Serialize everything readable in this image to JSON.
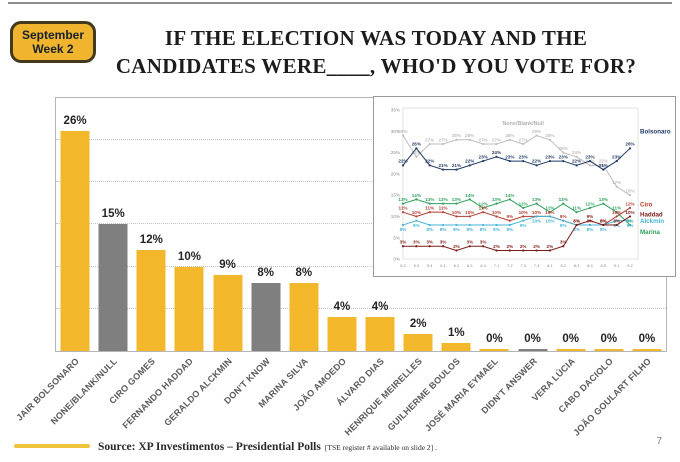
{
  "badge": {
    "line1": "September",
    "line2": "Week 2"
  },
  "title": {
    "line1": "IF THE ELECTION WAS TODAY AND THE",
    "line2": "CANDIDATES WERE____, WHO'D YOU VOTE FOR?"
  },
  "footer": {
    "source_main": "Source: XP Investimentos – Presidential  Polls",
    "source_note": "[TSE register # available on slide 2] .",
    "page_number": "7"
  },
  "colors": {
    "bar_yellow": "#f3b72b",
    "bar_gray": "#7f7f7f",
    "badge_yellow": "#f0b42f",
    "navy": "#1f3864",
    "gray_line": "#bdbdbd",
    "green": "#2fa05c",
    "ciro_red": "#b33a2c",
    "haddad_red": "#7e1a16",
    "alckmin_blue": "#45b5d8"
  },
  "chart_data": [
    {
      "type": "bar",
      "title": "",
      "xlabel": "",
      "ylabel": "",
      "ylim": [
        0,
        30
      ],
      "gridlines": [
        5,
        10,
        15,
        20,
        25
      ],
      "grid": true,
      "categories": [
        "JAIR BOLSONARO",
        "NONE/BLANK/NULL",
        "CIRO GOMES",
        "FERNANDO HADDAD",
        "GERALDO ALCKMIN",
        "DON'T KNOW",
        "MARINA SILVA",
        "JOÃO AMOEDO",
        "ÁLVARO DIAS",
        "HENRIQUE MEIRELLES",
        "GUILHERME BOULOS",
        "JOSÉ MARIA EYMAEL",
        "DIDN'T ANSWER",
        "VERA LÚCIA",
        "CABO DACIOLO",
        "JOÃO GOULART FILHO"
      ],
      "values": [
        26,
        15,
        12,
        10,
        9,
        8,
        8,
        4,
        4,
        2,
        1,
        0,
        0,
        0,
        0,
        0
      ],
      "data_labels": [
        "26%",
        "15%",
        "12%",
        "10%",
        "9%",
        "8%",
        "8%",
        "4%",
        "4%",
        "2%",
        "1%",
        "0%",
        "0%",
        "0%",
        "0%",
        "0%"
      ],
      "bar_color_keys": [
        "bar_yellow",
        "bar_gray",
        "bar_yellow",
        "bar_yellow",
        "bar_yellow",
        "bar_gray",
        "bar_yellow",
        "bar_yellow",
        "bar_yellow",
        "bar_yellow",
        "bar_yellow",
        "bar_yellow",
        "bar_gray",
        "bar_yellow",
        "bar_yellow",
        "bar_yellow"
      ]
    },
    {
      "type": "line",
      "title": "",
      "xlabel": "",
      "ylabel": "",
      "ylim": [
        0,
        35
      ],
      "y_ticks": [
        "0%",
        "5%",
        "10%",
        "15%",
        "20%",
        "25%",
        "30%",
        "35%"
      ],
      "grid": false,
      "legend_position": "right-edge",
      "x": [
        "5.2",
        "5.3",
        "5.4",
        "6.1",
        "6.2",
        "6.3",
        "6.4",
        "7.1",
        "7.2",
        "7.3",
        "7.4",
        "8.1",
        "8.2",
        "8.3",
        "8.4",
        "8.5",
        "9.1",
        "9.2"
      ],
      "series": [
        {
          "name": "None/Blank/Null",
          "color_key": "gray_line",
          "label_position": "inline-top",
          "point_labels": "above",
          "values": [
            29,
            24,
            27,
            27,
            28,
            28,
            27,
            27,
            28,
            27,
            29,
            28,
            25,
            24,
            22,
            22,
            17,
            15
          ]
        },
        {
          "name": "Bolsonaro",
          "color_key": "navy",
          "label_position": "right",
          "point_labels": "above",
          "values": [
            22,
            26,
            22,
            21,
            21,
            22,
            23,
            24,
            23,
            23,
            22,
            23,
            23,
            22,
            23,
            21,
            23,
            26
          ]
        },
        {
          "name": "Marina",
          "color_key": "green",
          "label_position": "right",
          "point_labels": "above",
          "values": [
            13,
            14,
            13,
            13,
            13,
            14,
            12,
            13,
            14,
            12,
            13,
            11,
            13,
            11,
            12,
            13,
            11,
            8
          ]
        },
        {
          "name": "Ciro",
          "color_key": "ciro_red",
          "label_position": "right",
          "point_labels": "above",
          "values": [
            11,
            10,
            11,
            11,
            10,
            10,
            11,
            10,
            9,
            10,
            10,
            10,
            9,
            8,
            8,
            8,
            10,
            12
          ]
        },
        {
          "name": "Alckmin",
          "color_key": "alckmin_blue",
          "label_position": "right",
          "point_labels": "below",
          "values": [
            8,
            9,
            8,
            8,
            8,
            8,
            8,
            8,
            8,
            9,
            10,
            10,
            9,
            8,
            8,
            8,
            9,
            9
          ]
        },
        {
          "name": "Haddad",
          "color_key": "haddad_red",
          "label_position": "right",
          "point_labels": "above",
          "values": [
            3,
            3,
            3,
            3,
            2,
            3,
            3,
            2,
            2,
            2,
            2,
            2,
            3,
            8,
            9,
            8,
            8,
            10
          ]
        }
      ]
    }
  ]
}
